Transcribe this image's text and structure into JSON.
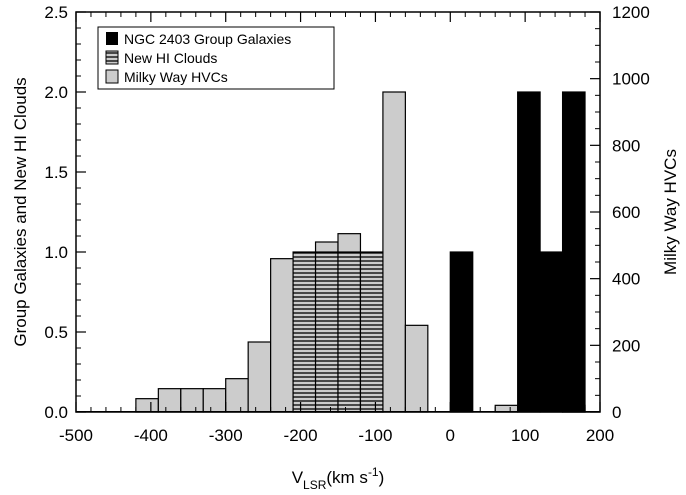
{
  "chart_data": {
    "type": "bar",
    "style": "step histogram with dual y-axes",
    "xlabel_main": "V",
    "xlabel_sub": "LSR",
    "xlabel_unit_pre": "(km s",
    "xlabel_unit_sup": "-1",
    "xlabel_unit_post": ")",
    "ylabel_left": "Group Galaxies and New HI Clouds",
    "ylabel_right": "Milky Way HVCs",
    "xlim": [
      -500,
      200
    ],
    "ylim_left": [
      0,
      2.5
    ],
    "ylim_right": [
      0,
      1200
    ],
    "grid": false,
    "legend_position": "top-left",
    "x_ticks": [
      "-500",
      "-400",
      "-300",
      "-200",
      "-100",
      "0",
      "100",
      "200"
    ],
    "y_left_ticks": [
      "0.0",
      "0.5",
      "1.0",
      "1.5",
      "2.0",
      "2.5"
    ],
    "y_right_ticks": [
      "0",
      "200",
      "400",
      "600",
      "800",
      "1000",
      "1200"
    ],
    "legend": [
      {
        "label": "NGC 2403 Group Galaxies",
        "fill": "#000000",
        "pattern": "solid"
      },
      {
        "label": "New HI Clouds",
        "fill": "#cccccc",
        "pattern": "hatch"
      },
      {
        "label": "Milky Way HVCs",
        "fill": "#cccccc",
        "pattern": "solid"
      }
    ],
    "series": [
      {
        "name": "Milky Way HVCs",
        "axis": "right",
        "color": "#cccccc",
        "bin_width": 30,
        "bins": [
          {
            "x0": -420,
            "value": 40
          },
          {
            "x0": -390,
            "value": 70
          },
          {
            "x0": -360,
            "value": 70
          },
          {
            "x0": -330,
            "value": 70
          },
          {
            "x0": -300,
            "value": 100
          },
          {
            "x0": -270,
            "value": 210
          },
          {
            "x0": -240,
            "value": 460
          },
          {
            "x0": -210,
            "value": 400
          },
          {
            "x0": -180,
            "value": 510
          },
          {
            "x0": -150,
            "value": 535
          },
          {
            "x0": -120,
            "value": 320
          },
          {
            "x0": -90,
            "value": 960
          },
          {
            "x0": -60,
            "value": 260
          },
          {
            "x0": 60,
            "value": 20
          },
          {
            "x0": 150,
            "value": 20
          }
        ]
      },
      {
        "name": "New HI Clouds",
        "axis": "left",
        "color": "#cccccc",
        "bin_width": 30,
        "bins": [
          {
            "x0": -210,
            "value": 1
          },
          {
            "x0": -180,
            "value": 1
          },
          {
            "x0": -150,
            "value": 1
          },
          {
            "x0": -120,
            "value": 1
          }
        ]
      },
      {
        "name": "NGC 2403 Group Galaxies",
        "axis": "left",
        "color": "#000000",
        "bin_width": 30,
        "bins": [
          {
            "x0": 0,
            "value": 1
          },
          {
            "x0": 90,
            "value": 2
          },
          {
            "x0": 120,
            "value": 1
          },
          {
            "x0": 150,
            "value": 2
          }
        ]
      }
    ]
  }
}
